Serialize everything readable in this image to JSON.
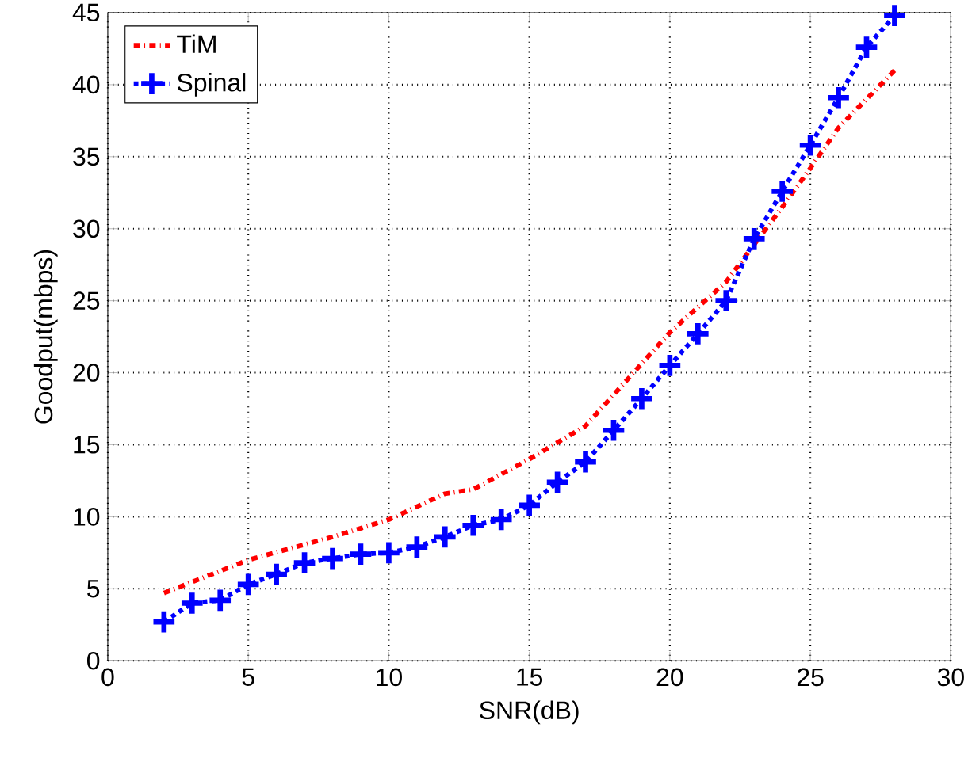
{
  "chart_data": {
    "type": "line",
    "xlabel": "SNR(dB)",
    "ylabel": "Goodput(mbps)",
    "xlim": [
      0,
      30
    ],
    "ylim": [
      0,
      45
    ],
    "xticks": [
      0,
      5,
      10,
      15,
      20,
      25,
      30
    ],
    "yticks": [
      0,
      5,
      10,
      15,
      20,
      25,
      30,
      35,
      40,
      45
    ],
    "grid": true,
    "legend": "top left",
    "series": [
      {
        "name": "TiM",
        "color": "#ff0000",
        "line_style": "dashdot",
        "marker": "none",
        "x": [
          2,
          5,
          8,
          10,
          12,
          13,
          15,
          17,
          20,
          22,
          24,
          25,
          26,
          28
        ],
        "values": [
          4.7,
          7.0,
          8.6,
          9.8,
          11.6,
          11.9,
          14.0,
          16.3,
          22.8,
          26.3,
          31.5,
          34.2,
          37.0,
          41.0
        ]
      },
      {
        "name": "Spinal",
        "color": "#0000ff",
        "line_style": "dotted",
        "marker": "cross",
        "x": [
          2,
          3,
          4,
          5,
          6,
          7,
          8,
          9,
          10,
          11,
          12,
          13,
          14,
          15,
          16,
          17,
          18,
          19,
          20,
          21,
          22,
          23,
          24,
          25,
          26,
          27,
          28
        ],
        "values": [
          2.7,
          4.0,
          4.2,
          5.3,
          6.0,
          6.8,
          7.1,
          7.4,
          7.5,
          7.9,
          8.6,
          9.4,
          9.8,
          10.8,
          12.4,
          13.8,
          16.0,
          18.2,
          20.5,
          22.7,
          25.0,
          29.3,
          32.6,
          35.8,
          39.1,
          42.6,
          44.8
        ]
      }
    ]
  }
}
